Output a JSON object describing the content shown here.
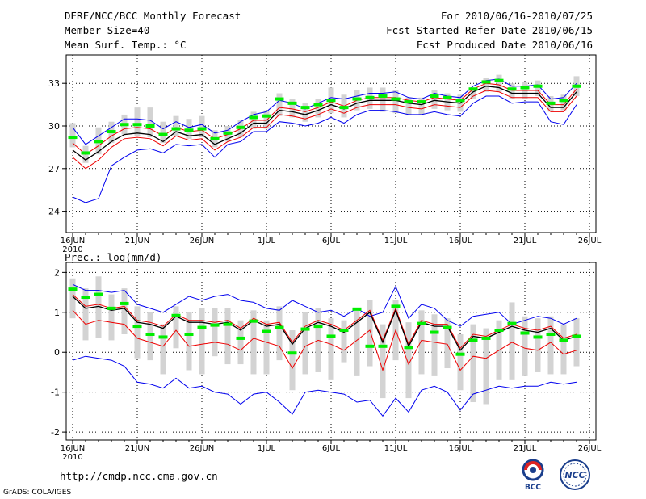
{
  "header": {
    "title": "DERF/NCC/BCC Monthly Forecast",
    "member_size": "Member Size=40",
    "variable": "Mean Surf. Temp.: °C",
    "forecast_period": "For 2010/06/16-2010/07/25",
    "start_date": "Fcst Started Refer Date 2010/06/15",
    "produced_date": "Fcst Produced Date 2010/06/16"
  },
  "footer": {
    "url": "http://cmdp.ncc.cma.gov.cn",
    "grads_credit": "GrADS: COLA/IGES",
    "logo_bcc_text": "BCC",
    "logo_ncc_text": "NCC"
  },
  "colors": {
    "ensemble_bar": "#d3d3d3",
    "ensemble_mean": "#00ee00",
    "spread_outer": "#0000ee",
    "spread_inner": "#ee0000",
    "median": "#000000",
    "grid": "#000000"
  },
  "chart_data": [
    {
      "type": "line",
      "title": "Mean Surf. Temp.: °C",
      "ylabel": "°C",
      "ylim": [
        22.5,
        35.0
      ],
      "yticks": [
        24,
        27,
        30,
        33
      ],
      "x_tick_labels": [
        "16JUN",
        "21JUN",
        "26JUN",
        "1JUL",
        "6JUL",
        "11JUL",
        "16JUL",
        "21JUL",
        "26JUL"
      ],
      "x_tick_days": [
        0,
        5,
        10,
        15,
        20,
        25,
        30,
        35,
        40
      ],
      "year_label": "2010",
      "x_days": [
        0,
        1,
        2,
        3,
        4,
        5,
        6,
        7,
        8,
        9,
        10,
        11,
        12,
        13,
        14,
        15,
        16,
        17,
        18,
        19,
        20,
        21,
        22,
        23,
        24,
        25,
        26,
        27,
        28,
        29,
        30,
        31,
        32,
        33,
        34,
        35,
        36,
        37,
        38,
        39
      ],
      "series": [
        {
          "name": "max",
          "color": "blue",
          "values": [
            29.9,
            28.7,
            29.3,
            29.9,
            30.5,
            30.5,
            30.4,
            29.8,
            30.3,
            29.9,
            30.1,
            29.5,
            29.7,
            30.3,
            30.8,
            31.0,
            31.8,
            31.6,
            31.2,
            31.6,
            32.0,
            31.9,
            32.1,
            32.3,
            32.3,
            32.4,
            32.0,
            31.9,
            32.3,
            32.1,
            32.0,
            32.8,
            33.2,
            33.3,
            32.8,
            32.8,
            32.9,
            31.9,
            32.0,
            33.0
          ]
        },
        {
          "name": "p85",
          "color": "red",
          "values": [
            28.8,
            28.0,
            28.6,
            29.3,
            29.8,
            29.9,
            29.8,
            29.3,
            29.9,
            29.6,
            29.7,
            29.1,
            29.4,
            29.8,
            30.4,
            30.4,
            31.3,
            31.2,
            31.0,
            31.3,
            31.7,
            31.4,
            31.8,
            32.0,
            32.0,
            32.0,
            31.8,
            31.7,
            32.0,
            31.9,
            31.8,
            32.6,
            33.0,
            32.9,
            32.5,
            32.5,
            32.5,
            31.5,
            31.5,
            32.6
          ]
        },
        {
          "name": "median",
          "color": "black",
          "values": [
            28.3,
            27.6,
            28.2,
            28.9,
            29.4,
            29.5,
            29.4,
            28.9,
            29.6,
            29.3,
            29.4,
            28.7,
            29.1,
            29.5,
            30.2,
            30.2,
            31.1,
            31.0,
            30.8,
            31.1,
            31.5,
            31.2,
            31.6,
            31.8,
            31.8,
            31.8,
            31.6,
            31.5,
            31.8,
            31.7,
            31.6,
            32.4,
            32.8,
            32.7,
            32.3,
            32.3,
            32.3,
            31.3,
            31.3,
            32.4
          ]
        },
        {
          "name": "p15",
          "color": "red",
          "values": [
            27.8,
            27.0,
            27.6,
            28.5,
            29.1,
            29.2,
            29.1,
            28.6,
            29.3,
            29.0,
            29.1,
            28.3,
            28.9,
            29.2,
            29.9,
            29.9,
            30.8,
            30.7,
            30.5,
            30.8,
            31.2,
            30.9,
            31.3,
            31.5,
            31.5,
            31.5,
            31.3,
            31.2,
            31.5,
            31.4,
            31.3,
            32.1,
            32.5,
            32.4,
            32.0,
            32.0,
            32.0,
            31.0,
            31.0,
            32.1
          ]
        },
        {
          "name": "min",
          "color": "blue",
          "values": [
            25.0,
            24.6,
            24.9,
            27.2,
            27.8,
            28.3,
            28.4,
            28.1,
            28.7,
            28.6,
            28.7,
            27.8,
            28.7,
            28.9,
            29.6,
            29.6,
            30.3,
            30.2,
            30.0,
            30.2,
            30.6,
            30.2,
            30.8,
            31.1,
            31.1,
            31.0,
            30.8,
            30.8,
            31.0,
            30.8,
            30.7,
            31.6,
            32.1,
            32.1,
            31.6,
            31.7,
            31.7,
            30.3,
            30.1,
            31.5
          ]
        },
        {
          "name": "ensemble_mean",
          "color": "green",
          "values": [
            29.2,
            28.1,
            28.9,
            29.6,
            30.1,
            30.1,
            30.0,
            29.4,
            29.8,
            29.7,
            29.8,
            29.1,
            29.5,
            29.9,
            30.6,
            30.7,
            31.9,
            31.6,
            31.3,
            31.5,
            31.8,
            31.3,
            31.9,
            32.0,
            32.1,
            31.9,
            31.7,
            31.7,
            32.1,
            32.0,
            31.8,
            32.6,
            33.1,
            33.2,
            32.6,
            32.7,
            32.8,
            31.6,
            31.8,
            32.8
          ]
        },
        {
          "name": "bar_high",
          "color": "gray",
          "values": [
            30.2,
            28.6,
            29.9,
            30.3,
            30.8,
            31.3,
            31.3,
            30.3,
            30.7,
            30.5,
            30.7,
            29.7,
            30.0,
            30.4,
            31.0,
            31.1,
            32.3,
            31.9,
            31.6,
            31.9,
            32.7,
            32.2,
            32.5,
            32.7,
            32.7,
            32.5,
            32.0,
            32.0,
            32.5,
            32.3,
            32.2,
            32.7,
            33.4,
            33.6,
            33.0,
            33.1,
            33.2,
            32.1,
            32.2,
            33.5
          ]
        },
        {
          "name": "bar_low",
          "color": "gray",
          "values": [
            28.5,
            27.4,
            28.0,
            28.8,
            29.4,
            29.3,
            29.2,
            28.8,
            29.3,
            29.1,
            29.2,
            28.5,
            28.9,
            29.2,
            29.8,
            29.8,
            30.7,
            30.6,
            30.3,
            30.6,
            30.9,
            30.6,
            31.1,
            31.2,
            31.0,
            30.9,
            30.8,
            30.8,
            31.2,
            31.1,
            31.0,
            31.9,
            32.4,
            32.4,
            31.9,
            31.9,
            32.1,
            31.0,
            31.1,
            32.1
          ]
        }
      ]
    },
    {
      "type": "line",
      "title": "Prec.: log(mm/d)",
      "ylabel": "log(mm/d)",
      "ylim": [
        -2.2,
        2.25
      ],
      "yticks": [
        -2,
        -1,
        0,
        1,
        2
      ],
      "x_tick_labels": [
        "16JUN",
        "21JUN",
        "26JUN",
        "1JUL",
        "6JUL",
        "11JUL",
        "16JUL",
        "21JUL",
        "26JUL"
      ],
      "x_tick_days": [
        0,
        5,
        10,
        15,
        20,
        25,
        30,
        35,
        40
      ],
      "year_label": "2010",
      "x_days": [
        0,
        1,
        2,
        3,
        4,
        5,
        6,
        7,
        8,
        9,
        10,
        11,
        12,
        13,
        14,
        15,
        16,
        17,
        18,
        19,
        20,
        21,
        22,
        23,
        24,
        25,
        26,
        27,
        28,
        29,
        30,
        31,
        32,
        33,
        34,
        35,
        36,
        37,
        38,
        39
      ],
      "series": [
        {
          "name": "max",
          "color": "blue",
          "values": [
            1.7,
            1.55,
            1.55,
            1.5,
            1.55,
            1.2,
            1.1,
            1.0,
            1.2,
            1.4,
            1.3,
            1.4,
            1.45,
            1.3,
            1.25,
            1.1,
            1.05,
            1.3,
            1.15,
            1.0,
            1.05,
            0.9,
            1.1,
            0.9,
            1.0,
            1.65,
            0.85,
            1.2,
            1.1,
            0.8,
            0.65,
            0.9,
            0.95,
            1.0,
            0.7,
            0.8,
            0.9,
            0.85,
            0.7,
            0.85
          ]
        },
        {
          "name": "p85",
          "color": "red",
          "values": [
            1.45,
            1.15,
            1.2,
            1.1,
            1.15,
            0.8,
            0.75,
            0.65,
            0.95,
            0.8,
            0.8,
            0.75,
            0.8,
            0.6,
            0.85,
            0.7,
            0.75,
            0.25,
            0.65,
            0.8,
            0.7,
            0.55,
            0.8,
            1.05,
            0.3,
            1.1,
            0.2,
            0.8,
            0.7,
            0.7,
            0.1,
            0.45,
            0.4,
            0.55,
            0.7,
            0.6,
            0.55,
            0.65,
            0.35,
            0.45
          ]
        },
        {
          "name": "median",
          "color": "black",
          "values": [
            1.4,
            1.1,
            1.15,
            1.05,
            1.1,
            0.75,
            0.7,
            0.6,
            0.9,
            0.75,
            0.75,
            0.7,
            0.75,
            0.55,
            0.8,
            0.65,
            0.7,
            0.2,
            0.6,
            0.75,
            0.65,
            0.5,
            0.75,
            1.0,
            0.25,
            1.05,
            0.15,
            0.75,
            0.65,
            0.65,
            0.05,
            0.4,
            0.35,
            0.5,
            0.65,
            0.55,
            0.5,
            0.6,
            0.3,
            0.4
          ]
        },
        {
          "name": "p15",
          "color": "red",
          "values": [
            1.05,
            0.7,
            0.8,
            0.75,
            0.7,
            0.35,
            0.25,
            0.15,
            0.55,
            0.15,
            0.2,
            0.25,
            0.2,
            0.05,
            0.35,
            0.25,
            0.15,
            -0.4,
            0.15,
            0.3,
            0.2,
            0.05,
            0.3,
            0.55,
            -0.45,
            0.55,
            -0.3,
            0.3,
            0.25,
            0.2,
            -0.45,
            -0.1,
            -0.15,
            0.05,
            0.25,
            0.1,
            0.05,
            0.25,
            -0.05,
            0.05
          ]
        },
        {
          "name": "min",
          "color": "blue",
          "values": [
            -0.2,
            -0.1,
            -0.15,
            -0.2,
            -0.35,
            -0.75,
            -0.8,
            -0.9,
            -0.65,
            -0.9,
            -0.85,
            -1.0,
            -1.05,
            -1.3,
            -1.05,
            -1.0,
            -1.25,
            -1.55,
            -1.0,
            -0.95,
            -1.0,
            -1.05,
            -1.25,
            -1.2,
            -1.6,
            -1.15,
            -1.5,
            -0.95,
            -0.85,
            -1.0,
            -1.45,
            -1.05,
            -0.95,
            -0.85,
            -0.9,
            -0.85,
            -0.85,
            -0.75,
            -0.8,
            -0.75
          ]
        },
        {
          "name": "ensemble_mean",
          "color": "green",
          "values": [
            1.58,
            1.38,
            1.45,
            1.1,
            1.22,
            0.65,
            0.45,
            0.38,
            0.92,
            0.45,
            0.62,
            0.68,
            0.7,
            0.35,
            0.78,
            0.52,
            0.62,
            -0.02,
            0.58,
            0.65,
            0.4,
            0.55,
            1.08,
            0.15,
            0.15,
            1.15,
            0.12,
            0.72,
            0.5,
            0.62,
            -0.05,
            0.3,
            0.35,
            0.55,
            0.72,
            0.48,
            0.38,
            0.45,
            0.3,
            0.4
          ]
        },
        {
          "name": "bar_high",
          "color": "gray",
          "values": [
            1.85,
            1.6,
            1.9,
            1.45,
            1.6,
            1.15,
            1.0,
            0.7,
            1.15,
            1.0,
            1.1,
            1.1,
            1.1,
            0.8,
            1.05,
            0.8,
            1.15,
            0.55,
            1.0,
            1.1,
            0.85,
            0.8,
            1.1,
            1.3,
            0.7,
            1.3,
            0.75,
            1.05,
            0.95,
            0.85,
            0.45,
            0.7,
            0.6,
            0.8,
            1.25,
            0.9,
            0.85,
            0.9,
            0.7,
            0.85
          ]
        },
        {
          "name": "bar_low",
          "color": "gray",
          "values": [
            0.85,
            0.3,
            0.35,
            0.3,
            0.45,
            -0.15,
            -0.2,
            -0.55,
            0.1,
            -0.45,
            -0.55,
            -0.1,
            -0.3,
            -0.3,
            -0.55,
            -0.55,
            -0.2,
            -0.95,
            -0.55,
            -0.5,
            -0.7,
            -0.25,
            -0.6,
            -0.35,
            -1.15,
            -0.2,
            -1.15,
            -0.55,
            -0.6,
            -0.4,
            -0.95,
            -1.25,
            -1.3,
            -0.7,
            -0.7,
            -0.6,
            -0.5,
            -0.55,
            -0.55,
            -0.35
          ]
        }
      ]
    }
  ]
}
